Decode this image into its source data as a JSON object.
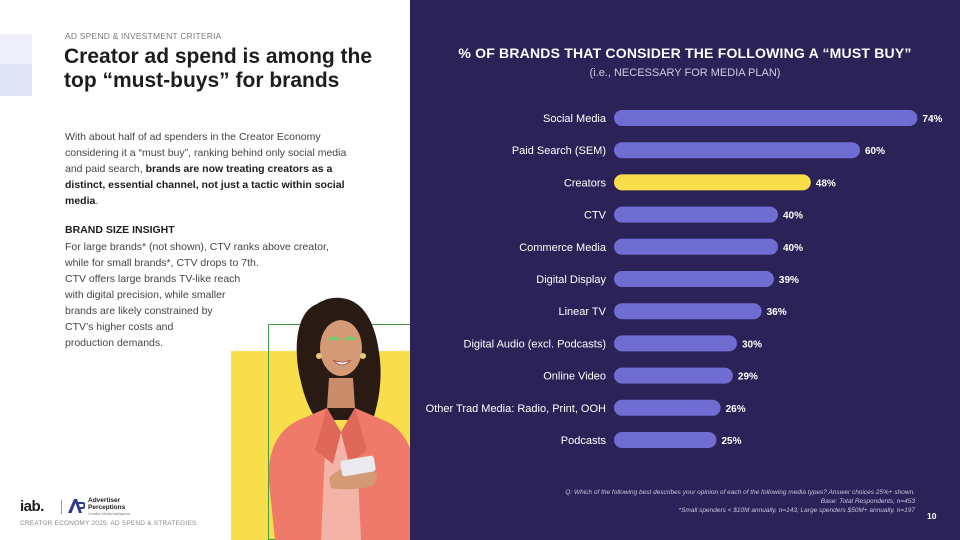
{
  "eyebrow": "AD SPEND & INVESTMENT CRITERIA",
  "title_line1": "Creator ad spend is among the",
  "title_line2": "top “must-buys” for brands",
  "body": {
    "text_start": "With about half of ad spenders in the Creator Economy considering it a “must buy”, ranking behind only social media and paid search, ",
    "text_bold": "brands are now treating creators as a distinct, essential channel, not just a tactic within social media",
    "text_end": "."
  },
  "insight": {
    "heading": "BRAND SIZE INSIGHT",
    "lines": [
      "For large brands* (not shown), CTV ranks above creator,",
      "while for small brands*, CTV drops to 7th.",
      "CTV offers large brands TV-like reach",
      "with digital precision, while smaller",
      "brands are likely constrained by",
      "CTV’s higher costs and",
      "production demands."
    ]
  },
  "logos": {
    "iab": "iab.",
    "ap_line1": "Advertiser",
    "ap_line2": "Perceptions",
    "ap_sub": "Creative Media Intelligence"
  },
  "footer": "CREATOR ECONOMY 2025: AD SPEND & STRATEGIES",
  "page_number": "10",
  "notes": {
    "line1": "Q: Which of the following best describes your opinion of each of the following media types? Answer choices 25%+ shown.",
    "line2": "Base: Total Respondents, n=453",
    "line3": "*Small spenders < $10M annually, n=143; Large spenders $50M+ annually, n=197"
  },
  "colors": {
    "bar": "#6f6dd1",
    "highlight": "#f7de4a",
    "background": "#2b2257"
  },
  "chart_data": {
    "type": "bar",
    "orientation": "horizontal",
    "title": "% OF BRANDS THAT CONSIDER THE FOLLOWING A “MUST BUY”",
    "subtitle": "(i.e., NECESSARY FOR MEDIA PLAN)",
    "categories": [
      "Social Media",
      "Paid Search (SEM)",
      "Creators",
      "CTV",
      "Commerce Media",
      "Digital Display",
      "Linear TV",
      "Digital Audio (excl. Podcasts)",
      "Online Video",
      "Other Trad Media: Radio, Print, OOH",
      "Podcasts"
    ],
    "values": [
      74,
      60,
      48,
      40,
      40,
      39,
      36,
      30,
      29,
      26,
      25
    ],
    "value_labels": [
      "74%",
      "60%",
      "48%",
      "40%",
      "40%",
      "39%",
      "36%",
      "30%",
      "29%",
      "26%",
      "25%"
    ],
    "highlight": "Creators",
    "xlim": [
      0,
      100
    ],
    "grid": false,
    "legend": "none"
  }
}
